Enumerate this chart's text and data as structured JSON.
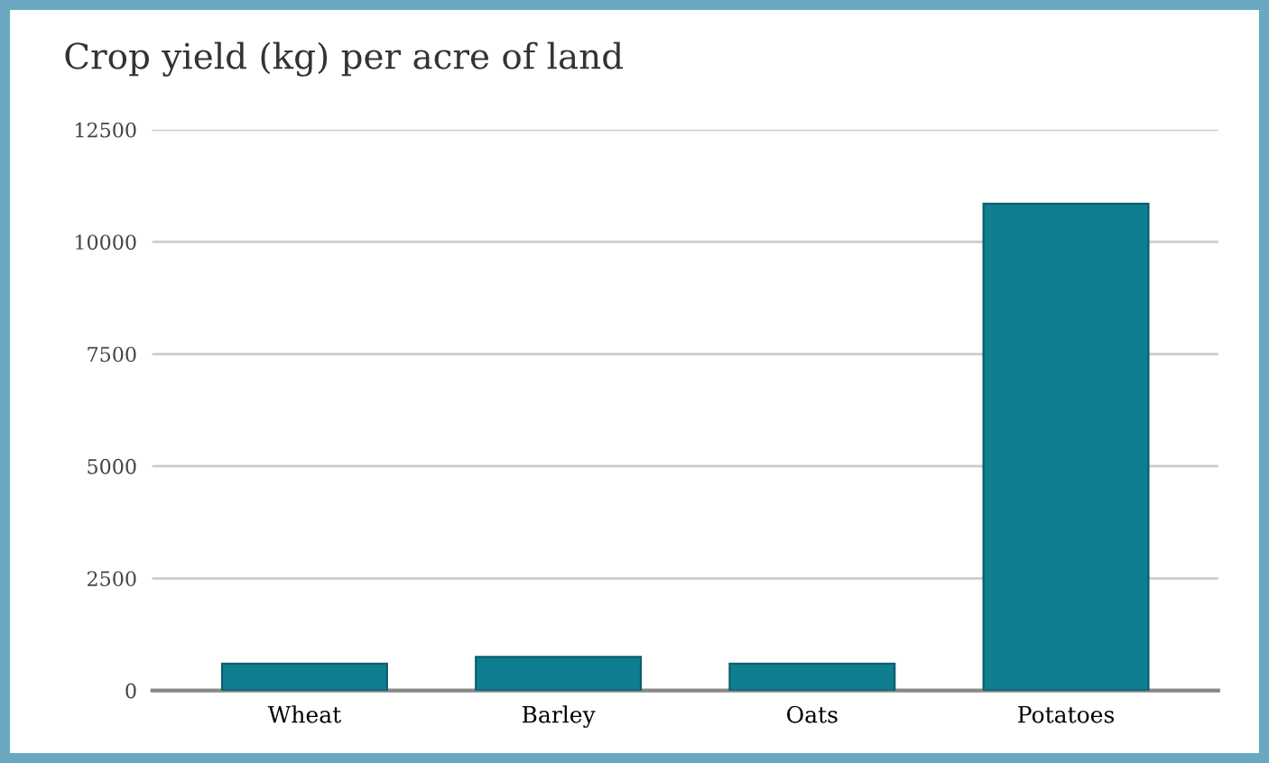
{
  "chart_data": {
    "type": "bar",
    "title": "Crop yield (kg) per acre of land",
    "categories": [
      "Wheat",
      "Barley",
      "Oats",
      "Potatoes"
    ],
    "values": [
      600,
      750,
      600,
      10850
    ],
    "color": "#0f7e90",
    "ylim": [
      0,
      12500
    ],
    "yticks": [
      0,
      2500,
      5000,
      7500,
      10000,
      12500
    ],
    "grid": "y",
    "legend": false
  }
}
